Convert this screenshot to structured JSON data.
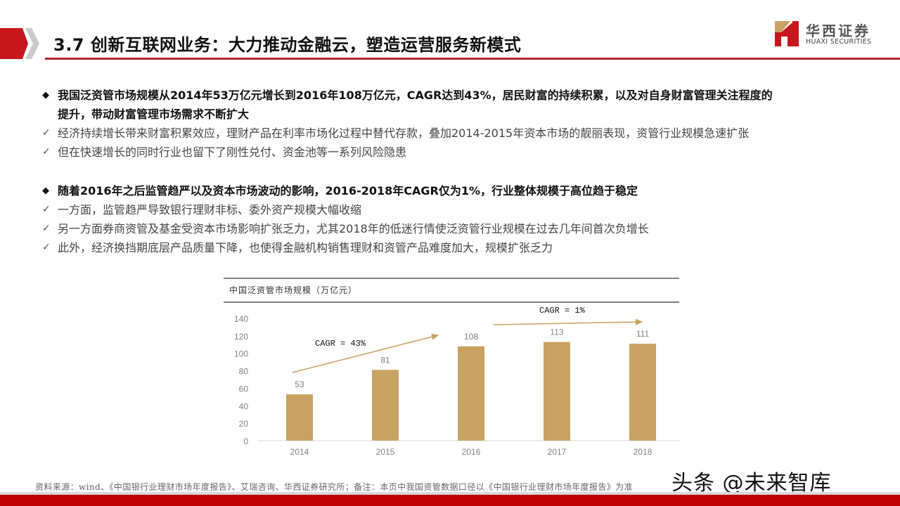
{
  "header": {
    "title": "3.7 创新互联网业务：大力推动金融云，塑造运营服务新模式",
    "accent_color": "#c8161d"
  },
  "logo": {
    "name_cn": "华西证券",
    "name_en": "HUAXI SECURITIES"
  },
  "bullets": [
    {
      "type": "main",
      "icon": "diamond-bullet-icon",
      "lines": [
        "我国泛资管市场规模从2014年53万亿元增长到2016年108万亿元，CAGR达到43%，居民财富的持续积累，以及对自身财富管理关注程度的",
        "提升，带动财富管理市场需求不断扩大"
      ]
    },
    {
      "type": "sub",
      "icon": "checkmark-icon",
      "text": "经济持续增长带来财富积累效应，理财产品在利率市场化过程中替代存款，叠加2014-2015年资本市场的靓丽表现，资管行业规模急速扩张"
    },
    {
      "type": "sub",
      "icon": "checkmark-icon",
      "text": "但在快速增长的同时行业也留下了刚性兑付、资金池等一系列风险隐患"
    },
    {
      "type": "main",
      "icon": "diamond-bullet-icon",
      "lines": [
        "随着2016年之后监管趋严以及资本市场波动的影响，2016-2018年CAGR仅为1%，行业整体规模于高位趋于稳定"
      ]
    },
    {
      "type": "sub",
      "icon": "checkmark-icon",
      "text": "一方面，监管趋严导致银行理财非标、委外资产规模大幅收缩"
    },
    {
      "type": "sub",
      "icon": "checkmark-icon",
      "text": "另一方面券商资管及基金受资本市场影响扩张乏力，尤其2018年的低迷行情使泛资管行业规模在过去几年间首次负增长"
    },
    {
      "type": "sub",
      "icon": "checkmark-icon",
      "text": "此外，经济换挡期底层产品质量下降，也使得金融机构销售理财和资管产品难度加大，规模扩张乏力"
    }
  ],
  "marks": {
    "diamond": "◆",
    "check": "✓"
  },
  "chart_data": {
    "type": "bar",
    "title": "中国泛资管市场规模（万亿元）",
    "categories": [
      "2014",
      "2015",
      "2016",
      "2017",
      "2018"
    ],
    "values": [
      53,
      81,
      108,
      113,
      111
    ],
    "data_labels": [
      "53",
      "81",
      "108",
      "113",
      "111"
    ],
    "xlabel": "",
    "ylabel": "",
    "ylim": [
      0,
      140
    ],
    "yticks": [
      0,
      20,
      40,
      60,
      80,
      100,
      120,
      140
    ],
    "grid": false,
    "legend": null,
    "bar_color": "#c9a363",
    "annotations": [
      {
        "text": "CAGR = 43%",
        "arrow_from": "2014",
        "arrow_to": "2016"
      },
      {
        "text": "CAGR = 1%",
        "arrow_from": "2016",
        "arrow_to": "2018"
      }
    ]
  },
  "footer": {
    "source": "资料来源：wind、《中国银行业理财市场年度报告》、艾瑞咨询、华西证券研究所；备注：本页中我国资管数据口径以《中国银行业理财市场年度报告》为准",
    "watermark": "头条 @未来智库"
  }
}
